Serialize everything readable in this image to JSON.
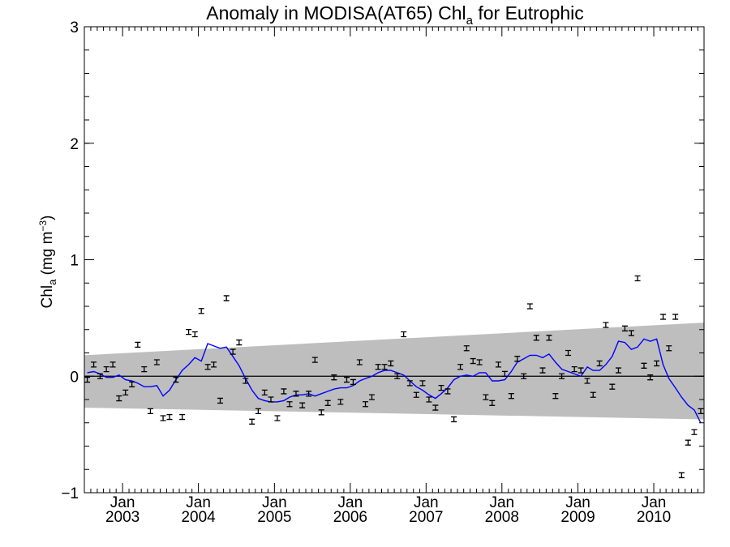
{
  "chart_data": {
    "type": "line",
    "title": {
      "main": "Anomaly in MODISA(AT65) Chl",
      "sub": "a",
      "rest": " for Eutrophic"
    },
    "ylabel": {
      "main": "Chl",
      "sub": "a",
      "unit": " (mg m",
      "exp": "−3",
      "close": ")"
    },
    "ylim": [
      -1,
      3
    ],
    "yticks": [
      -1,
      0,
      1,
      2,
      3
    ],
    "ytick_labels": [
      "−1",
      "0",
      "1",
      "2",
      "3"
    ],
    "xlim": [
      "2002-07-01",
      "2010-08-31"
    ],
    "xticks": [
      {
        "date": "2003-01-01",
        "month": "Jan",
        "year": "2003"
      },
      {
        "date": "2004-01-01",
        "month": "Jan",
        "year": "2004"
      },
      {
        "date": "2005-01-01",
        "month": "Jan",
        "year": "2005"
      },
      {
        "date": "2006-01-01",
        "month": "Jan",
        "year": "2006"
      },
      {
        "date": "2007-01-01",
        "month": "Jan",
        "year": "2007"
      },
      {
        "date": "2008-01-01",
        "month": "Jan",
        "year": "2008"
      },
      {
        "date": "2009-01-01",
        "month": "Jan",
        "year": "2009"
      },
      {
        "date": "2010-01-01",
        "month": "Jan",
        "year": "2010"
      }
    ],
    "zero_line": 0,
    "band": {
      "color": "#bebebe",
      "lower": [
        [
          "2002-07-01",
          -0.27
        ],
        [
          "2010-08-31",
          -0.37
        ]
      ],
      "upper": [
        [
          "2002-07-01",
          0.18
        ],
        [
          "2010-08-31",
          0.46
        ]
      ]
    },
    "series": [
      {
        "kind": "monthly_anomaly",
        "color": "#000000",
        "points": [
          [
            "2002-07-15",
            -0.03
          ],
          [
            "2002-08-15",
            0.1
          ],
          [
            "2002-09-15",
            0.0
          ],
          [
            "2002-10-15",
            0.06
          ],
          [
            "2002-11-15",
            0.1
          ],
          [
            "2002-12-15",
            -0.19
          ],
          [
            "2003-01-15",
            -0.14
          ],
          [
            "2003-02-15",
            -0.07
          ],
          [
            "2003-03-15",
            0.27
          ],
          [
            "2003-04-15",
            0.06
          ],
          [
            "2003-05-15",
            -0.3
          ],
          [
            "2003-06-15",
            0.12
          ],
          [
            "2003-07-15",
            -0.36
          ],
          [
            "2003-08-15",
            -0.35
          ],
          [
            "2003-09-15",
            -0.03
          ],
          [
            "2003-10-15",
            -0.35
          ],
          [
            "2003-11-15",
            0.38
          ],
          [
            "2003-12-15",
            0.36
          ],
          [
            "2004-01-15",
            0.56
          ],
          [
            "2004-02-15",
            0.08
          ],
          [
            "2004-03-15",
            0.1
          ],
          [
            "2004-04-15",
            -0.21
          ],
          [
            "2004-05-15",
            0.67
          ],
          [
            "2004-06-15",
            0.21
          ],
          [
            "2004-07-15",
            0.29
          ],
          [
            "2004-08-15",
            -0.04
          ],
          [
            "2004-09-15",
            -0.39
          ],
          [
            "2004-10-15",
            -0.3
          ],
          [
            "2004-11-15",
            -0.14
          ],
          [
            "2004-12-15",
            -0.2
          ],
          [
            "2005-01-15",
            -0.36
          ],
          [
            "2005-02-15",
            -0.13
          ],
          [
            "2005-03-15",
            -0.24
          ],
          [
            "2005-04-15",
            -0.15
          ],
          [
            "2005-05-15",
            -0.25
          ],
          [
            "2005-06-15",
            -0.15
          ],
          [
            "2005-07-15",
            0.14
          ],
          [
            "2005-08-15",
            -0.31
          ],
          [
            "2005-09-15",
            -0.23
          ],
          [
            "2005-10-15",
            -0.01
          ],
          [
            "2005-11-15",
            -0.22
          ],
          [
            "2005-12-15",
            -0.03
          ],
          [
            "2006-01-15",
            -0.05
          ],
          [
            "2006-02-15",
            0.12
          ],
          [
            "2006-03-15",
            -0.24
          ],
          [
            "2006-04-15",
            -0.18
          ],
          [
            "2006-05-15",
            0.08
          ],
          [
            "2006-06-15",
            0.08
          ],
          [
            "2006-07-15",
            0.11
          ],
          [
            "2006-08-15",
            0.0
          ],
          [
            "2006-09-15",
            0.36
          ],
          [
            "2006-10-15",
            -0.06
          ],
          [
            "2006-11-15",
            -0.16
          ],
          [
            "2006-12-15",
            -0.06
          ],
          [
            "2007-01-15",
            -0.2
          ],
          [
            "2007-02-15",
            -0.27
          ],
          [
            "2007-03-15",
            -0.1
          ],
          [
            "2007-04-15",
            -0.13
          ],
          [
            "2007-05-15",
            -0.37
          ],
          [
            "2007-06-15",
            0.08
          ],
          [
            "2007-07-15",
            0.24
          ],
          [
            "2007-08-15",
            0.13
          ],
          [
            "2007-09-15",
            0.12
          ],
          [
            "2007-10-15",
            -0.18
          ],
          [
            "2007-11-15",
            -0.23
          ],
          [
            "2007-12-15",
            0.1
          ],
          [
            "2008-01-15",
            0.02
          ],
          [
            "2008-02-15",
            -0.17
          ],
          [
            "2008-03-15",
            0.15
          ],
          [
            "2008-04-15",
            0.0
          ],
          [
            "2008-05-15",
            0.6
          ],
          [
            "2008-06-15",
            0.33
          ],
          [
            "2008-07-15",
            0.05
          ],
          [
            "2008-08-15",
            0.33
          ],
          [
            "2008-09-15",
            -0.17
          ],
          [
            "2008-10-15",
            0.0
          ],
          [
            "2008-11-15",
            0.2
          ],
          [
            "2008-12-15",
            0.06
          ],
          [
            "2009-01-15",
            0.05
          ],
          [
            "2009-02-15",
            -0.04
          ],
          [
            "2009-03-15",
            -0.16
          ],
          [
            "2009-04-15",
            0.11
          ],
          [
            "2009-05-15",
            0.44
          ],
          [
            "2009-06-15",
            -0.09
          ],
          [
            "2009-07-15",
            0.05
          ],
          [
            "2009-08-15",
            0.41
          ],
          [
            "2009-09-15",
            0.37
          ],
          [
            "2009-10-15",
            0.84
          ],
          [
            "2009-11-15",
            0.09
          ],
          [
            "2009-12-15",
            -0.01
          ],
          [
            "2010-01-15",
            0.11
          ],
          [
            "2010-02-15",
            0.51
          ],
          [
            "2010-03-15",
            0.24
          ],
          [
            "2010-04-15",
            0.51
          ],
          [
            "2010-05-15",
            -0.85
          ],
          [
            "2010-06-15",
            -0.57
          ],
          [
            "2010-07-15",
            -0.48
          ],
          [
            "2010-08-15",
            -0.3
          ]
        ]
      },
      {
        "kind": "smoothed",
        "color": "#0000ff",
        "points": [
          [
            "2002-07-15",
            0.03
          ],
          [
            "2002-08-15",
            0.04
          ],
          [
            "2002-09-15",
            0.02
          ],
          [
            "2002-10-15",
            -0.01
          ],
          [
            "2002-11-15",
            -0.01
          ],
          [
            "2002-12-15",
            0.01
          ],
          [
            "2003-01-15",
            -0.03
          ],
          [
            "2003-02-15",
            -0.04
          ],
          [
            "2003-03-15",
            -0.06
          ],
          [
            "2003-04-15",
            -0.09
          ],
          [
            "2003-05-15",
            -0.09
          ],
          [
            "2003-06-15",
            -0.08
          ],
          [
            "2003-07-15",
            -0.17
          ],
          [
            "2003-08-15",
            -0.12
          ],
          [
            "2003-09-15",
            -0.03
          ],
          [
            "2003-10-15",
            0.05
          ],
          [
            "2003-11-15",
            0.1
          ],
          [
            "2003-12-15",
            0.16
          ],
          [
            "2004-01-15",
            0.13
          ],
          [
            "2004-02-15",
            0.28
          ],
          [
            "2004-03-15",
            0.26
          ],
          [
            "2004-04-15",
            0.24
          ],
          [
            "2004-05-15",
            0.25
          ],
          [
            "2004-06-15",
            0.17
          ],
          [
            "2004-07-15",
            0.09
          ],
          [
            "2004-08-15",
            -0.02
          ],
          [
            "2004-09-15",
            -0.12
          ],
          [
            "2004-10-15",
            -0.19
          ],
          [
            "2004-11-15",
            -0.21
          ],
          [
            "2004-12-15",
            -0.22
          ],
          [
            "2005-01-15",
            -0.22
          ],
          [
            "2005-02-15",
            -0.21
          ],
          [
            "2005-03-15",
            -0.18
          ],
          [
            "2005-04-15",
            -0.16
          ],
          [
            "2005-05-15",
            -0.16
          ],
          [
            "2005-06-15",
            -0.15
          ],
          [
            "2005-07-15",
            -0.17
          ],
          [
            "2005-08-15",
            -0.15
          ],
          [
            "2005-09-15",
            -0.13
          ],
          [
            "2005-10-15",
            -0.11
          ],
          [
            "2005-11-15",
            -0.1
          ],
          [
            "2005-12-15",
            -0.1
          ],
          [
            "2006-01-15",
            -0.08
          ],
          [
            "2006-02-15",
            -0.04
          ],
          [
            "2006-03-15",
            -0.02
          ],
          [
            "2006-04-15",
            0.0
          ],
          [
            "2006-05-15",
            0.03
          ],
          [
            "2006-06-15",
            0.05
          ],
          [
            "2006-07-15",
            0.05
          ],
          [
            "2006-08-15",
            0.03
          ],
          [
            "2006-09-15",
            0.01
          ],
          [
            "2006-10-15",
            -0.04
          ],
          [
            "2006-11-15",
            -0.09
          ],
          [
            "2006-12-15",
            -0.12
          ],
          [
            "2007-01-15",
            -0.16
          ],
          [
            "2007-02-15",
            -0.19
          ],
          [
            "2007-03-15",
            -0.15
          ],
          [
            "2007-04-15",
            -0.1
          ],
          [
            "2007-05-15",
            -0.03
          ],
          [
            "2007-06-15",
            0.0
          ],
          [
            "2007-07-15",
            0.01
          ],
          [
            "2007-08-15",
            0.0
          ],
          [
            "2007-09-15",
            0.03
          ],
          [
            "2007-10-15",
            0.03
          ],
          [
            "2007-11-15",
            -0.04
          ],
          [
            "2007-12-15",
            -0.04
          ],
          [
            "2008-01-15",
            -0.03
          ],
          [
            "2008-02-15",
            0.04
          ],
          [
            "2008-03-15",
            0.12
          ],
          [
            "2008-04-15",
            0.15
          ],
          [
            "2008-05-15",
            0.18
          ],
          [
            "2008-06-15",
            0.18
          ],
          [
            "2008-07-15",
            0.16
          ],
          [
            "2008-08-15",
            0.19
          ],
          [
            "2008-09-15",
            0.12
          ],
          [
            "2008-10-15",
            0.06
          ],
          [
            "2008-11-15",
            0.04
          ],
          [
            "2008-12-15",
            0.02
          ],
          [
            "2009-01-15",
            0.0
          ],
          [
            "2009-02-15",
            0.08
          ],
          [
            "2009-03-15",
            0.05
          ],
          [
            "2009-04-15",
            0.05
          ],
          [
            "2009-05-15",
            0.1
          ],
          [
            "2009-06-15",
            0.17
          ],
          [
            "2009-07-15",
            0.3
          ],
          [
            "2009-08-15",
            0.29
          ],
          [
            "2009-09-15",
            0.23
          ],
          [
            "2009-10-15",
            0.25
          ],
          [
            "2009-11-15",
            0.32
          ],
          [
            "2009-12-15",
            0.3
          ],
          [
            "2010-01-15",
            0.32
          ],
          [
            "2010-02-15",
            0.1
          ],
          [
            "2010-03-15",
            -0.02
          ],
          [
            "2010-04-15",
            -0.1
          ],
          [
            "2010-05-15",
            -0.18
          ],
          [
            "2010-06-15",
            -0.25
          ],
          [
            "2010-07-15",
            -0.29
          ],
          [
            "2010-08-15",
            -0.4
          ]
        ]
      }
    ],
    "grid": false,
    "legend": "none"
  }
}
